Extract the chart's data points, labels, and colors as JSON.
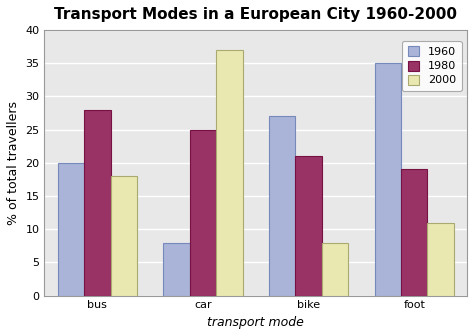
{
  "title": "Transport Modes in a European City 1960-2000",
  "categories": [
    "bus",
    "car",
    "bike",
    "foot"
  ],
  "years": [
    "1960",
    "1980",
    "2000"
  ],
  "values": {
    "1960": [
      20,
      8,
      27,
      35
    ],
    "1980": [
      28,
      25,
      21,
      19
    ],
    "2000": [
      18,
      37,
      8,
      11
    ]
  },
  "bar_colors": {
    "1960": "#aab4d8",
    "1980": "#993366",
    "2000": "#e8e8b0"
  },
  "bar_edge_colors": {
    "1960": "#7788bb",
    "1980": "#771144",
    "2000": "#aaaa70"
  },
  "xlabel": "transport mode",
  "ylabel": "% of total travellers",
  "ylim": [
    0,
    40
  ],
  "yticks": [
    0,
    5,
    10,
    15,
    20,
    25,
    30,
    35,
    40
  ],
  "plot_bg_color": "#e8e8e8",
  "fig_bg_color": "#ffffff",
  "title_fontsize": 11,
  "axis_label_fontsize": 9,
  "tick_fontsize": 8,
  "legend_fontsize": 8,
  "grid_color": "#ffffff",
  "border_color": "#999999"
}
